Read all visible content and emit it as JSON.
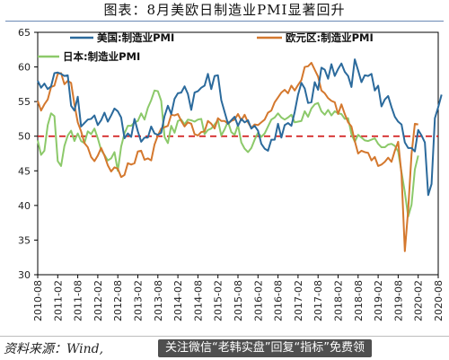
{
  "header": {
    "title": "图表：8月美欧日制造业PMI显著回升"
  },
  "footer": {
    "source": "资料来源：Wind,",
    "watermark": "关注微信“老韩实盘”回复“指标”免费领"
  },
  "colors": {
    "us": "#2b6a9c",
    "euro": "#d4782e",
    "japan": "#8cc96a",
    "reference": "#d21f1f"
  },
  "chart_data": {
    "type": "line",
    "ylim": [
      30,
      65
    ],
    "yticks": [
      30,
      35,
      40,
      45,
      50,
      55,
      60,
      65
    ],
    "xlim": [
      0,
      120
    ],
    "xtick_labels": [
      "2010-08",
      "2011-02",
      "2011-08",
      "2012-02",
      "2012-08",
      "2013-02",
      "2013-08",
      "2014-02",
      "2014-08",
      "2015-02",
      "2015-08",
      "2016-02",
      "2016-08",
      "2017-02",
      "2017-08",
      "2018-02",
      "2018-08",
      "2019-02",
      "2019-08",
      "2020-02",
      "2020-08"
    ],
    "reference_line": 50,
    "grid": false,
    "legend": "top",
    "series": [
      {
        "name": "美国:制造业PMI",
        "color_key": "us",
        "values": [
          58.0,
          57.0,
          57.6,
          56.8,
          57.2,
          59.1,
          59.2,
          59.0,
          58.7,
          58.8,
          54.4,
          53.7,
          55.7,
          51.4,
          51.9,
          52.4,
          52.5,
          53.0,
          51.6,
          52.3,
          53.4,
          52.1,
          53.0,
          54.0,
          53.6,
          52.7,
          49.7,
          50.4,
          49.9,
          52.5,
          50.7,
          49.2,
          49.8,
          49.8,
          51.4,
          50.4,
          50.2,
          50.5,
          52.9,
          54.4,
          53.2,
          55.4,
          56.2,
          56.3,
          57.2,
          56.1,
          53.8,
          56.3,
          56.5,
          57.0,
          57.3,
          59.0,
          56.8,
          58.7,
          58.8,
          55.2,
          53.5,
          51.8,
          52.3,
          52.8,
          51.5,
          52.5,
          52.0,
          52.3,
          51.1,
          51.5,
          50.8,
          48.9,
          48.2,
          47.9,
          49.5,
          49.5,
          51.8,
          49.8,
          51.6,
          51.9,
          51.5,
          53.5,
          56.0,
          57.7,
          56.9,
          54.8,
          54.9,
          57.8,
          56.7,
          59.9,
          59.6,
          58.3,
          60.4,
          58.7,
          59.7,
          60.5,
          59.3,
          58.7,
          57.1,
          61.1,
          59.5,
          57.8,
          58.8,
          58.7,
          59.0,
          56.6,
          57.3,
          54.3,
          55.3,
          55.8,
          54.2,
          52.8,
          52.1,
          51.7,
          49.1,
          48.3,
          48.3,
          47.8,
          50.9,
          50.1,
          49.1,
          41.5,
          43.1,
          52.6,
          54.2,
          56.0
        ]
      },
      {
        "name": "欧元区:制造业PMI",
        "color_key": "euro",
        "values": [
          55.1,
          53.7,
          54.6,
          55.3,
          57.1,
          57.3,
          59.0,
          59.1,
          57.5,
          58.0,
          57.7,
          54.6,
          52.0,
          50.7,
          49.0,
          48.4,
          47.0,
          46.4,
          47.2,
          48.3,
          47.2,
          45.8,
          44.9,
          45.5,
          45.3,
          44.1,
          44.4,
          46.1,
          45.9,
          46.1,
          47.8,
          47.9,
          46.6,
          46.8,
          46.5,
          48.8,
          50.1,
          51.1,
          51.3,
          51.5,
          53.1,
          53.0,
          53.2,
          52.2,
          51.4,
          52.0,
          51.8,
          50.3,
          50.1,
          50.6,
          50.7,
          52.2,
          51.8,
          51.1,
          52.6,
          52.2,
          52.2,
          51.8,
          52.2,
          52.4,
          53.2,
          52.3,
          53.1,
          52.0,
          51.2,
          51.7,
          51.6,
          52.0,
          52.4,
          53.4,
          53.7,
          54.9,
          55.6,
          56.3,
          56.7,
          56.2,
          57.3,
          56.6,
          57.4,
          58.1,
          60.0,
          60.1,
          60.6,
          59.6,
          58.6,
          56.6,
          56.2,
          55.5,
          55.1,
          54.9,
          53.2,
          54.6,
          53.2,
          52.0,
          51.4,
          49.3,
          47.5,
          47.9,
          47.7,
          47.6,
          46.5,
          47.0,
          45.7,
          45.9,
          46.3,
          46.9,
          46.3,
          47.9,
          49.2,
          44.5,
          33.4,
          39.4,
          47.4,
          51.8,
          51.7
        ]
      },
      {
        "name": "日本:制造业PMI",
        "color_key": "japan",
        "values": [
          49.4,
          47.3,
          47.9,
          51.6,
          53.3,
          52.9,
          46.4,
          45.7,
          48.6,
          50.1,
          50.8,
          49.3,
          50.4,
          49.3,
          49.0,
          50.7,
          50.3,
          51.1,
          49.7,
          48.0,
          47.3,
          46.5,
          46.8,
          47.7,
          45.0,
          48.5,
          50.4,
          51.5,
          51.5,
          52.0,
          52.2,
          53.3,
          52.4,
          54.1,
          55.2,
          56.6,
          56.5,
          55.1,
          49.9,
          49.0,
          51.5,
          50.5,
          52.2,
          52.4,
          51.7,
          52.4,
          52.3,
          52.1,
          52.4,
          52.5,
          50.3,
          50.9,
          51.1,
          51.7,
          52.3,
          50.1,
          51.0,
          52.1,
          50.6,
          50.2,
          51.6,
          49.1,
          48.2,
          47.7,
          48.3,
          49.5,
          50.5,
          49.9,
          50.4,
          51.4,
          52.4,
          52.7,
          53.3,
          52.7,
          52.4,
          52.7,
          53.1,
          52.0,
          52.1,
          52.2,
          53.6,
          52.8,
          54.0,
          54.6,
          54.8,
          53.6,
          53.1,
          53.8,
          53.0,
          53.6,
          53.3,
          53.2,
          52.5,
          52.6,
          50.3,
          49.2,
          50.2,
          49.8,
          49.4,
          49.3,
          49.5,
          49.7,
          48.9,
          48.4,
          48.4,
          48.8,
          48.9,
          48.6,
          47.8,
          44.8,
          41.9,
          38.4,
          40.1,
          45.2,
          47.2
        ]
      }
    ]
  }
}
